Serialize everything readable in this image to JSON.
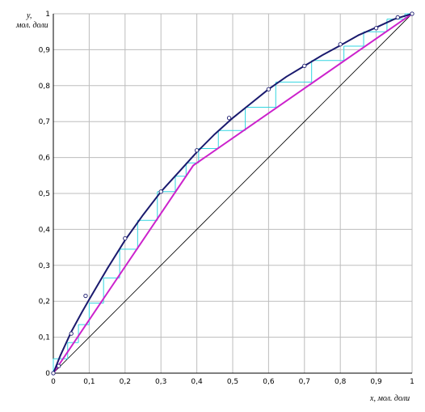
{
  "chart_data": {
    "type": "line",
    "title": "",
    "ylabel_line1": "y,",
    "ylabel_line2": "мол. доли",
    "xlabel": "x, мол. доли",
    "xlim": [
      0,
      1
    ],
    "ylim": [
      0,
      1
    ],
    "grid": true,
    "x_ticks": [
      "0",
      "0,1",
      "0,2",
      "0,3",
      "0,4",
      "0,5",
      "0,6",
      "0,7",
      "0,8",
      "0,9",
      "1"
    ],
    "y_ticks": [
      "0",
      "0,1",
      "0,2",
      "0,3",
      "0,4",
      "0,5",
      "0,6",
      "0,7",
      "0,8",
      "0,9",
      "1"
    ],
    "colors": {
      "equilibrium": "#1a1a6e",
      "operating": "#cc22cc",
      "steps": "#33d6e0",
      "diagonal": "#000000",
      "grid": "#bdbdbd"
    },
    "series": [
      {
        "kind": "equilibrium_curve",
        "x": [
          0,
          0.02,
          0.05,
          0.08,
          0.1,
          0.15,
          0.2,
          0.25,
          0.3,
          0.35,
          0.4,
          0.45,
          0.5,
          0.55,
          0.6,
          0.65,
          0.7,
          0.75,
          0.8,
          0.85,
          0.9,
          0.95,
          1.0
        ],
        "y": [
          0,
          0.05,
          0.115,
          0.17,
          0.205,
          0.29,
          0.37,
          0.44,
          0.505,
          0.56,
          0.615,
          0.665,
          0.71,
          0.75,
          0.79,
          0.825,
          0.855,
          0.885,
          0.912,
          0.94,
          0.962,
          0.985,
          1.0
        ]
      },
      {
        "kind": "experimental_points",
        "x": [
          0,
          0.015,
          0.05,
          0.09,
          0.2,
          0.3,
          0.4,
          0.49,
          0.6,
          0.7,
          0.8,
          0.9,
          0.96,
          1.0
        ],
        "y": [
          0,
          0.02,
          0.11,
          0.215,
          0.375,
          0.505,
          0.62,
          0.71,
          0.79,
          0.855,
          0.915,
          0.96,
          0.99,
          1.0
        ]
      },
      {
        "kind": "operating_line",
        "x": [
          0,
          0.39,
          1.0
        ],
        "y": [
          0,
          0.578,
          1.0
        ]
      },
      {
        "kind": "steps",
        "x": [
          1.0,
          0.98,
          0.93,
          0.865,
          0.81,
          0.72,
          0.62,
          0.535,
          0.46,
          0.405,
          0.37,
          0.34,
          0.29,
          0.235,
          0.185,
          0.14,
          0.1,
          0.07,
          0.04,
          0.0
        ],
        "y": [
          1.0,
          0.985,
          0.95,
          0.91,
          0.87,
          0.81,
          0.74,
          0.675,
          0.625,
          0.585,
          0.548,
          0.505,
          0.425,
          0.345,
          0.265,
          0.195,
          0.135,
          0.085,
          0.04,
          0.0
        ]
      },
      {
        "kind": "diagonal",
        "x": [
          0,
          1
        ],
        "y": [
          0,
          1
        ]
      }
    ]
  }
}
